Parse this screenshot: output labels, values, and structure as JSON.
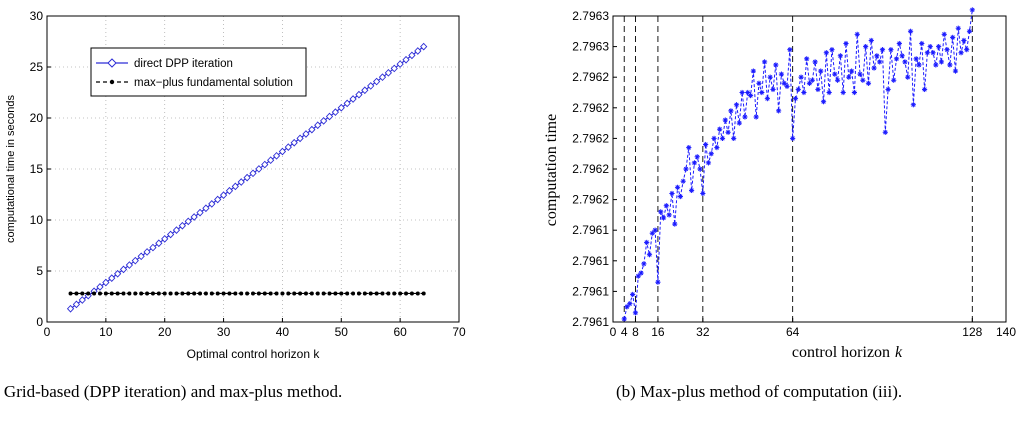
{
  "chart_data": [
    {
      "type": "line",
      "xlabel": "Optimal control horizon k",
      "ylabel": "computational time in seconds",
      "xlim": [
        0,
        70
      ],
      "ylim": [
        0,
        30
      ],
      "xticks": [
        0,
        10,
        20,
        30,
        40,
        50,
        60,
        70
      ],
      "yticks": [
        0,
        5,
        10,
        15,
        20,
        25,
        30
      ],
      "grid": true,
      "legend_position": "top-left",
      "series": [
        {
          "name": "direct DPP iteration",
          "color": "#2d2dd6",
          "marker": "diamond",
          "line": "solid",
          "x_start": 4,
          "x_end": 64,
          "y_start": 1.3,
          "y_end": 27.0
        },
        {
          "name": "max−plus fundamental solution",
          "color": "#000000",
          "marker": "dot",
          "line": "dashed",
          "x_start": 4,
          "x_end": 64,
          "y_start": 2.8,
          "y_end": 2.8
        }
      ]
    },
    {
      "type": "line",
      "xlabel": "control horizon",
      "xlabel_var": "k",
      "ylabel": "computation time",
      "xlim": [
        0,
        140
      ],
      "xticks": [
        0,
        4,
        8,
        16,
        32,
        64,
        128,
        140
      ],
      "ytick_labels": [
        "2.7961",
        "2.7961",
        "2.7961",
        "2.7961",
        "2.7962",
        "2.7962",
        "2.7962",
        "2.7962",
        "2.7962",
        "2.7963",
        "2.7963"
      ],
      "yrange_index": [
        0,
        10
      ],
      "vlines": [
        4,
        8,
        16,
        32,
        64,
        128
      ],
      "series": [
        {
          "name": "",
          "color": "#1a1aff",
          "marker": "star",
          "line": "dashed",
          "x": [
            4,
            5,
            6,
            7,
            8,
            9,
            10,
            11,
            12,
            13,
            14,
            15,
            16,
            17,
            18,
            19,
            20,
            21,
            22,
            23,
            24,
            25,
            26,
            27,
            28,
            29,
            30,
            31,
            32,
            33,
            34,
            35,
            36,
            37,
            38,
            39,
            40,
            41,
            42,
            43,
            44,
            45,
            46,
            47,
            48,
            49,
            50,
            51,
            52,
            53,
            54,
            55,
            56,
            57,
            58,
            59,
            60,
            61,
            62,
            63,
            64,
            65,
            66,
            67,
            68,
            69,
            70,
            71,
            72,
            73,
            74,
            75,
            76,
            77,
            78,
            79,
            80,
            81,
            82,
            83,
            84,
            85,
            86,
            87,
            88,
            89,
            90,
            91,
            92,
            93,
            94,
            95,
            96,
            97,
            98,
            99,
            100,
            101,
            102,
            103,
            104,
            105,
            106,
            107,
            108,
            109,
            110,
            111,
            112,
            113,
            114,
            115,
            116,
            117,
            118,
            119,
            120,
            121,
            122,
            123,
            124,
            125,
            126,
            127,
            128
          ],
          "y": [
            0.1,
            0.5,
            0.6,
            0.9,
            0.3,
            1.5,
            1.6,
            1.9,
            2.6,
            2.2,
            2.9,
            3.0,
            1.3,
            3.6,
            3.4,
            3.8,
            3.5,
            4.2,
            3.2,
            4.4,
            4.1,
            4.6,
            5.0,
            5.7,
            4.3,
            5.2,
            5.4,
            5.0,
            4.2,
            5.8,
            5.2,
            5.5,
            6.0,
            5.7,
            6.3,
            6.0,
            6.6,
            6.2,
            6.9,
            6.0,
            7.1,
            6.5,
            7.5,
            6.7,
            7.5,
            7.4,
            8.2,
            6.7,
            7.8,
            7.5,
            8.5,
            7.3,
            8.0,
            7.6,
            8.4,
            6.9,
            8.1,
            7.8,
            7.7,
            8.9,
            6.0,
            7.3,
            7.6,
            8.0,
            7.5,
            8.6,
            7.8,
            7.9,
            8.5,
            7.6,
            8.2,
            7.2,
            8.8,
            7.5,
            8.9,
            8.1,
            7.9,
            8.7,
            7.5,
            9.1,
            8.0,
            8.2,
            7.5,
            9.4,
            8.1,
            7.9,
            9.0,
            7.8,
            9.2,
            8.3,
            8.7,
            8.5,
            8.9,
            6.2,
            7.6,
            8.9,
            7.9,
            8.6,
            9.1,
            8.7,
            8.5,
            8.0,
            9.5,
            7.1,
            8.6,
            8.4,
            9.1,
            7.6,
            8.8,
            9.0,
            8.8,
            8.4,
            9.0,
            8.5,
            9.4,
            8.9,
            8.4,
            9.3,
            8.2,
            9.6,
            8.8,
            9.2,
            8.9,
            9.5,
            10.2
          ]
        }
      ]
    }
  ],
  "captions": {
    "a": ") Grid-based (DPP iteration) and max-plus method.",
    "b": "(b) Max-plus method of computation (iii)."
  }
}
